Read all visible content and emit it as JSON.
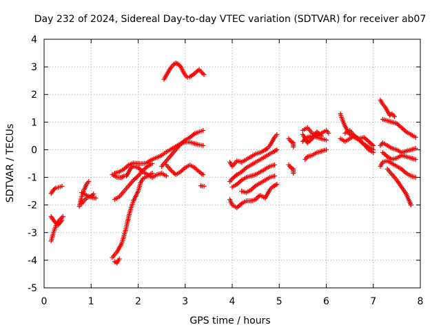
{
  "chart_data": {
    "type": "scatter",
    "title": "Day 232 of 2024, Sidereal Day-to-day VTEC variation (SDTVAR) for receiver ab07",
    "xlabel": "GPS time / hours",
    "ylabel": "SDTVAR / TECUs",
    "xlim": [
      0,
      8
    ],
    "ylim": [
      -5,
      4
    ],
    "x_ticks": [
      0,
      1,
      2,
      3,
      4,
      5,
      6,
      7,
      8
    ],
    "y_ticks": [
      -5,
      -4,
      -3,
      -2,
      -1,
      0,
      1,
      2,
      3,
      4
    ],
    "x_tick_labels": [
      "0",
      "1",
      "2",
      "3",
      "4",
      "5",
      "6",
      "7",
      "8"
    ],
    "y_tick_labels": [
      "-5",
      "-4",
      "-3",
      "-2",
      "-1",
      "0",
      "1",
      "2",
      "3",
      "4"
    ],
    "grid": true,
    "marker": "plus",
    "marker_color": "#ff0000",
    "tracks": [
      [
        [
          0.15,
          -1.58
        ],
        [
          0.2,
          -1.45
        ],
        [
          0.25,
          -1.38
        ],
        [
          0.3,
          -1.36
        ],
        [
          0.38,
          -1.32
        ]
      ],
      [
        [
          0.15,
          -3.3
        ],
        [
          0.2,
          -3.0
        ],
        [
          0.25,
          -2.75
        ],
        [
          0.3,
          -2.6
        ],
        [
          0.35,
          -2.5
        ],
        [
          0.4,
          -2.42
        ]
      ],
      [
        [
          0.15,
          -2.42
        ],
        [
          0.22,
          -2.6
        ],
        [
          0.3,
          -2.72
        ],
        [
          0.38,
          -2.55
        ]
      ],
      [
        [
          0.75,
          -2.05
        ],
        [
          0.8,
          -1.7
        ],
        [
          0.85,
          -1.45
        ],
        [
          0.9,
          -1.25
        ],
        [
          0.95,
          -1.15
        ]
      ],
      [
        [
          0.8,
          -1.55
        ],
        [
          0.9,
          -1.65
        ],
        [
          1.0,
          -1.72
        ],
        [
          1.1,
          -1.75
        ]
      ],
      [
        [
          0.8,
          -1.95
        ],
        [
          0.85,
          -1.85
        ],
        [
          0.9,
          -1.75
        ],
        [
          1.0,
          -1.68
        ],
        [
          1.05,
          -1.6
        ]
      ],
      [
        [
          1.45,
          -3.9
        ],
        [
          1.55,
          -3.7
        ],
        [
          1.65,
          -3.4
        ],
        [
          1.7,
          -3.1
        ],
        [
          1.75,
          -2.8
        ],
        [
          1.8,
          -2.4
        ],
        [
          1.85,
          -2.1
        ],
        [
          1.9,
          -1.85
        ],
        [
          2.0,
          -1.5
        ],
        [
          2.05,
          -1.2
        ],
        [
          2.1,
          -1.05
        ],
        [
          2.2,
          -0.95
        ],
        [
          2.3,
          -0.85
        ]
      ],
      [
        [
          1.5,
          -4.05
        ],
        [
          1.55,
          -4.1
        ],
        [
          1.6,
          -3.95
        ]
      ],
      [
        [
          1.45,
          -0.9
        ],
        [
          1.55,
          -1.0
        ],
        [
          1.65,
          -1.0
        ],
        [
          1.7,
          -0.95
        ]
      ],
      [
        [
          1.5,
          -1.8
        ],
        [
          1.6,
          -1.7
        ],
        [
          1.7,
          -1.5
        ],
        [
          1.8,
          -1.3
        ],
        [
          1.9,
          -1.1
        ],
        [
          2.0,
          -0.95
        ],
        [
          2.1,
          -0.75
        ],
        [
          2.2,
          -0.6
        ],
        [
          2.3,
          -0.5
        ]
      ],
      [
        [
          1.5,
          -0.85
        ],
        [
          1.6,
          -0.8
        ],
        [
          1.7,
          -0.7
        ],
        [
          1.8,
          -0.55
        ],
        [
          1.9,
          -0.48
        ],
        [
          2.0,
          -0.5
        ],
        [
          2.1,
          -0.5
        ],
        [
          2.2,
          -0.48
        ]
      ],
      [
        [
          1.75,
          -0.95
        ],
        [
          1.8,
          -0.8
        ],
        [
          1.85,
          -0.65
        ],
        [
          1.9,
          -0.6
        ],
        [
          2.0,
          -0.65
        ],
        [
          2.1,
          -0.8
        ],
        [
          2.2,
          -0.9
        ],
        [
          2.3,
          -1.0
        ],
        [
          2.4,
          -0.9
        ],
        [
          2.5,
          -0.85
        ],
        [
          2.6,
          -0.95
        ]
      ],
      [
        [
          2.2,
          -0.45
        ],
        [
          2.3,
          -0.35
        ],
        [
          2.4,
          -0.28
        ],
        [
          2.5,
          -0.2
        ],
        [
          2.6,
          -0.08
        ],
        [
          2.7,
          0.02
        ],
        [
          2.8,
          0.12
        ],
        [
          2.9,
          0.22
        ],
        [
          3.0,
          0.28
        ],
        [
          3.1,
          0.28
        ],
        [
          3.2,
          0.22
        ],
        [
          3.3,
          0.18
        ],
        [
          3.38,
          0.15
        ]
      ],
      [
        [
          2.5,
          -0.6
        ],
        [
          2.6,
          -0.4
        ],
        [
          2.7,
          -0.2
        ],
        [
          2.8,
          0.0
        ],
        [
          2.9,
          0.2
        ],
        [
          3.0,
          0.35
        ],
        [
          3.1,
          0.45
        ],
        [
          3.2,
          0.58
        ],
        [
          3.3,
          0.65
        ],
        [
          3.38,
          0.7
        ]
      ],
      [
        [
          2.6,
          -0.55
        ],
        [
          2.7,
          -0.75
        ],
        [
          2.8,
          -0.9
        ],
        [
          2.9,
          -0.8
        ],
        [
          3.0,
          -0.65
        ],
        [
          3.1,
          -0.55
        ],
        [
          3.2,
          -0.65
        ],
        [
          3.3,
          -0.8
        ],
        [
          3.38,
          -0.9
        ]
      ],
      [
        [
          2.55,
          2.55
        ],
        [
          2.6,
          2.7
        ],
        [
          2.65,
          2.85
        ],
        [
          2.7,
          2.98
        ],
        [
          2.75,
          3.08
        ],
        [
          2.8,
          3.14
        ],
        [
          2.85,
          3.1
        ],
        [
          2.9,
          3.02
        ],
        [
          2.95,
          2.85
        ],
        [
          3.0,
          2.7
        ],
        [
          3.05,
          2.62
        ],
        [
          3.1,
          2.64
        ],
        [
          3.15,
          2.7
        ],
        [
          3.2,
          2.76
        ],
        [
          3.25,
          2.84
        ],
        [
          3.3,
          2.9
        ],
        [
          3.35,
          2.8
        ],
        [
          3.4,
          2.72
        ]
      ],
      [
        [
          3.33,
          -1.3
        ],
        [
          3.36,
          -1.32
        ],
        [
          3.4,
          -1.32
        ]
      ],
      [
        [
          3.95,
          -1.8
        ],
        [
          4.0,
          -2.0
        ],
        [
          4.1,
          -2.1
        ],
        [
          4.2,
          -1.95
        ],
        [
          4.3,
          -1.85
        ],
        [
          4.4,
          -1.85
        ],
        [
          4.5,
          -1.8
        ],
        [
          4.55,
          -1.7
        ],
        [
          4.6,
          -1.65
        ],
        [
          4.7,
          -1.75
        ],
        [
          4.75,
          -1.6
        ],
        [
          4.8,
          -1.45
        ],
        [
          4.85,
          -1.35
        ],
        [
          4.9,
          -1.3
        ],
        [
          4.95,
          -1.25
        ]
      ],
      [
        [
          3.95,
          -0.45
        ],
        [
          4.0,
          -0.6
        ],
        [
          4.05,
          -0.5
        ],
        [
          4.1,
          -0.4
        ],
        [
          4.2,
          -0.45
        ],
        [
          4.3,
          -0.35
        ],
        [
          4.4,
          -0.25
        ],
        [
          4.5,
          -0.15
        ],
        [
          4.6,
          -0.1
        ],
        [
          4.7,
          0.0
        ],
        [
          4.75,
          0.05
        ],
        [
          4.8,
          0.15
        ],
        [
          4.85,
          0.3
        ],
        [
          4.9,
          0.45
        ],
        [
          4.95,
          0.55
        ]
      ],
      [
        [
          3.95,
          -1.15
        ],
        [
          4.0,
          -1.05
        ],
        [
          4.1,
          -0.9
        ],
        [
          4.2,
          -0.8
        ],
        [
          4.3,
          -0.65
        ],
        [
          4.4,
          -0.55
        ],
        [
          4.5,
          -0.45
        ],
        [
          4.6,
          -0.35
        ],
        [
          4.7,
          -0.25
        ],
        [
          4.8,
          -0.15
        ],
        [
          4.9,
          -0.05
        ],
        [
          4.95,
          0.0
        ]
      ],
      [
        [
          4.0,
          -1.35
        ],
        [
          4.1,
          -1.25
        ],
        [
          4.2,
          -1.1
        ],
        [
          4.3,
          -1.0
        ],
        [
          4.4,
          -0.95
        ],
        [
          4.5,
          -0.9
        ],
        [
          4.6,
          -0.8
        ],
        [
          4.7,
          -0.7
        ],
        [
          4.8,
          -0.6
        ],
        [
          4.9,
          -0.55
        ]
      ],
      [
        [
          4.2,
          -1.5
        ],
        [
          4.3,
          -1.55
        ],
        [
          4.4,
          -1.45
        ],
        [
          4.5,
          -1.3
        ],
        [
          4.6,
          -1.2
        ],
        [
          4.7,
          -1.1
        ],
        [
          4.8,
          -1.0
        ],
        [
          4.9,
          -0.95
        ]
      ],
      [
        [
          5.2,
          0.4
        ],
        [
          5.25,
          0.3
        ],
        [
          5.3,
          0.25
        ],
        [
          5.3,
          0.1
        ]
      ],
      [
        [
          5.2,
          -0.55
        ],
        [
          5.25,
          -0.65
        ],
        [
          5.3,
          -0.7
        ],
        [
          5.3,
          -0.85
        ]
      ],
      [
        [
          5.5,
          0.7
        ],
        [
          5.6,
          0.8
        ],
        [
          5.7,
          0.6
        ],
        [
          5.8,
          0.5
        ],
        [
          5.9,
          0.6
        ],
        [
          6.0,
          0.7
        ],
        [
          6.05,
          0.6
        ]
      ],
      [
        [
          5.5,
          0.3
        ],
        [
          5.6,
          0.45
        ],
        [
          5.7,
          0.5
        ],
        [
          5.8,
          0.45
        ],
        [
          5.9,
          0.4
        ],
        [
          6.0,
          0.35
        ]
      ],
      [
        [
          5.5,
          0.55
        ],
        [
          5.55,
          0.4
        ],
        [
          5.6,
          0.25
        ],
        [
          5.7,
          0.4
        ],
        [
          5.8,
          0.65
        ],
        [
          5.9,
          0.5
        ]
      ],
      [
        [
          5.55,
          -0.35
        ],
        [
          5.6,
          -0.25
        ],
        [
          5.7,
          -0.2
        ],
        [
          5.8,
          -0.1
        ],
        [
          5.9,
          -0.05
        ],
        [
          6.0,
          0.0
        ]
      ],
      [
        [
          6.3,
          1.3
        ],
        [
          6.35,
          1.05
        ],
        [
          6.4,
          0.85
        ],
        [
          6.45,
          0.7
        ],
        [
          6.5,
          0.55
        ],
        [
          6.6,
          0.45
        ],
        [
          6.7,
          0.35
        ],
        [
          6.8,
          0.2
        ],
        [
          6.9,
          0.1
        ],
        [
          7.0,
          0.0
        ]
      ],
      [
        [
          6.3,
          0.4
        ],
        [
          6.4,
          0.3
        ],
        [
          6.5,
          0.4
        ],
        [
          6.6,
          0.5
        ],
        [
          6.7,
          0.4
        ],
        [
          6.8,
          0.45
        ],
        [
          6.9,
          0.3
        ],
        [
          7.0,
          0.15
        ]
      ],
      [
        [
          6.4,
          0.6
        ],
        [
          6.5,
          0.7
        ],
        [
          6.6,
          0.5
        ],
        [
          6.7,
          0.35
        ],
        [
          6.8,
          0.2
        ],
        [
          6.9,
          0.0
        ],
        [
          7.0,
          -0.1
        ]
      ],
      [
        [
          7.15,
          1.8
        ],
        [
          7.2,
          1.65
        ],
        [
          7.25,
          1.55
        ],
        [
          7.3,
          1.4
        ],
        [
          7.35,
          1.25
        ],
        [
          7.4,
          1.3
        ],
        [
          7.45,
          1.2
        ]
      ],
      [
        [
          7.2,
          1.1
        ],
        [
          7.3,
          1.05
        ],
        [
          7.4,
          1.0
        ],
        [
          7.5,
          0.95
        ],
        [
          7.6,
          0.8
        ],
        [
          7.7,
          0.65
        ],
        [
          7.8,
          0.55
        ],
        [
          7.9,
          0.45
        ]
      ],
      [
        [
          7.15,
          0.15
        ],
        [
          7.2,
          0.25
        ],
        [
          7.3,
          0.15
        ],
        [
          7.4,
          0.05
        ],
        [
          7.5,
          0.0
        ],
        [
          7.6,
          -0.1
        ],
        [
          7.7,
          -0.05
        ],
        [
          7.8,
          0.0
        ],
        [
          7.9,
          0.05
        ]
      ],
      [
        [
          7.15,
          -0.6
        ],
        [
          7.2,
          -0.45
        ],
        [
          7.3,
          -0.4
        ],
        [
          7.4,
          -0.5
        ],
        [
          7.5,
          -0.6
        ],
        [
          7.6,
          -0.7
        ],
        [
          7.7,
          -0.85
        ],
        [
          7.8,
          -0.95
        ],
        [
          7.9,
          -1.0
        ]
      ],
      [
        [
          7.2,
          -0.1
        ],
        [
          7.3,
          -0.25
        ],
        [
          7.4,
          -0.35
        ],
        [
          7.5,
          -0.3
        ],
        [
          7.6,
          -0.2
        ],
        [
          7.7,
          -0.25
        ],
        [
          7.8,
          -0.3
        ],
        [
          7.9,
          -0.35
        ]
      ],
      [
        [
          7.3,
          -0.7
        ],
        [
          7.4,
          -0.9
        ],
        [
          7.5,
          -1.1
        ],
        [
          7.6,
          -1.35
        ],
        [
          7.7,
          -1.6
        ],
        [
          7.75,
          -1.8
        ],
        [
          7.8,
          -2.0
        ]
      ]
    ]
  }
}
